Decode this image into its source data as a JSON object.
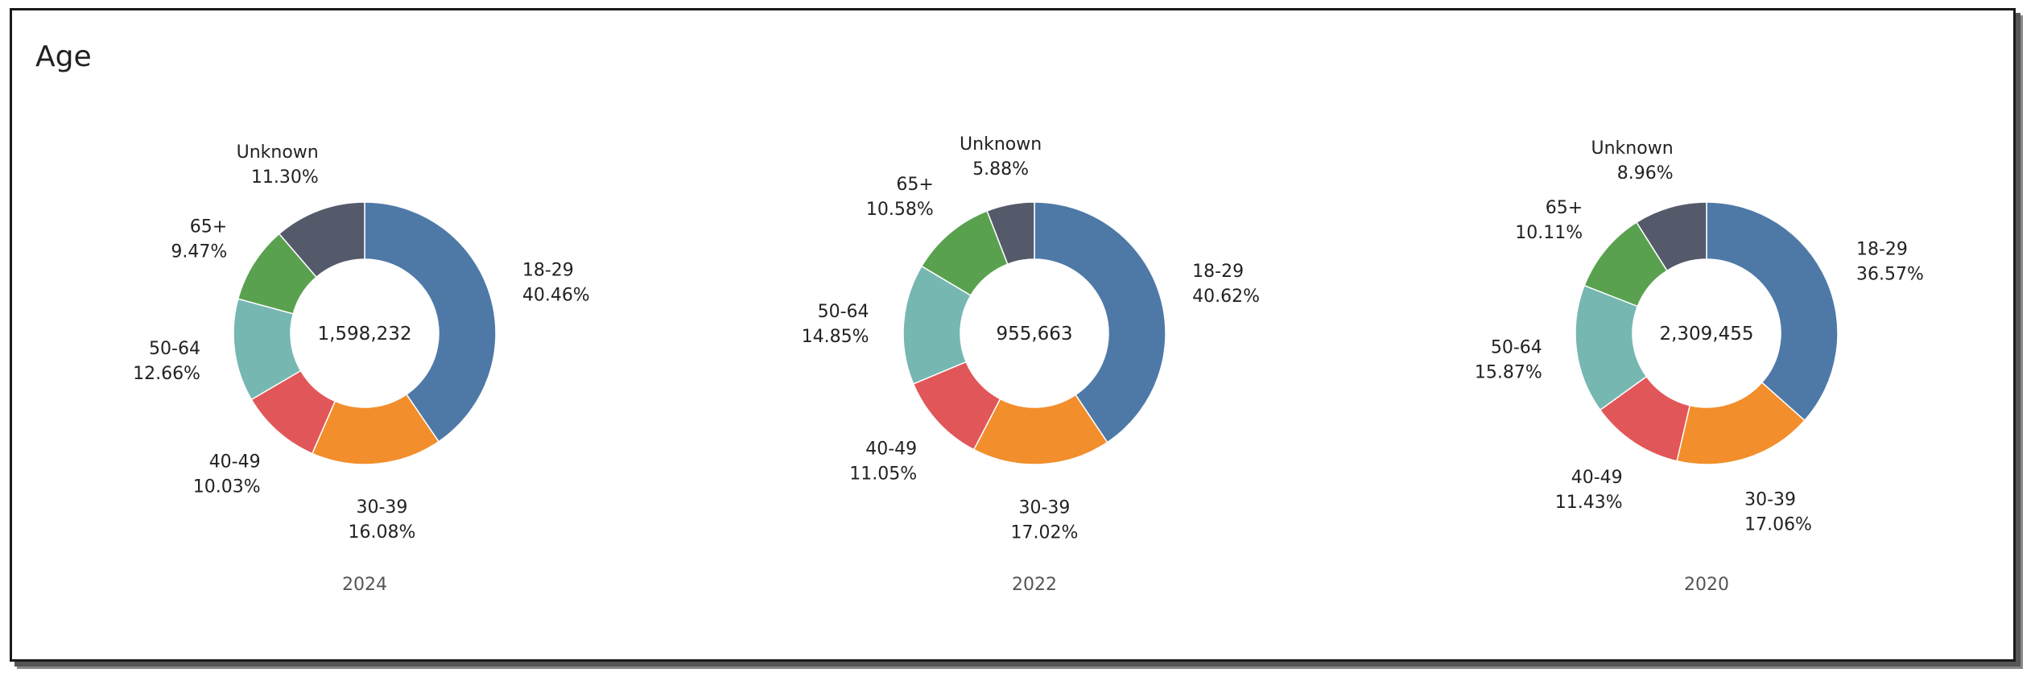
{
  "panel": {
    "title": "Age"
  },
  "colors": {
    "18-29": "#4e79a7",
    "30-39": "#f28e2b",
    "40-49": "#e15759",
    "50-64": "#76b7b2",
    "65+": "#59a14f",
    "Unknown": "#555a6b"
  },
  "chart_data": [
    {
      "type": "pie",
      "donut": true,
      "label": "2024",
      "center_label": "1,598,232",
      "categories": [
        "18-29",
        "30-39",
        "40-49",
        "50-64",
        "65+",
        "Unknown"
      ],
      "values": [
        40.46,
        16.08,
        10.03,
        12.66,
        9.47,
        11.3
      ],
      "value_labels": [
        "40.46%",
        "16.08%",
        "10.03%",
        "12.66%",
        "9.47%",
        "11.30%"
      ]
    },
    {
      "type": "pie",
      "donut": true,
      "label": "2022",
      "center_label": "955,663",
      "categories": [
        "18-29",
        "30-39",
        "40-49",
        "50-64",
        "65+",
        "Unknown"
      ],
      "values": [
        40.62,
        17.02,
        11.05,
        14.85,
        10.58,
        5.88
      ],
      "value_labels": [
        "40.62%",
        "17.02%",
        "11.05%",
        "14.85%",
        "10.58%",
        "5.88%"
      ]
    },
    {
      "type": "pie",
      "donut": true,
      "label": "2020",
      "center_label": "2,309,455",
      "categories": [
        "18-29",
        "30-39",
        "40-49",
        "50-64",
        "65+",
        "Unknown"
      ],
      "values": [
        36.57,
        17.06,
        11.43,
        15.87,
        10.11,
        8.96
      ],
      "value_labels": [
        "36.57%",
        "17.06%",
        "11.43%",
        "15.87%",
        "10.11%",
        "8.96%"
      ]
    }
  ]
}
